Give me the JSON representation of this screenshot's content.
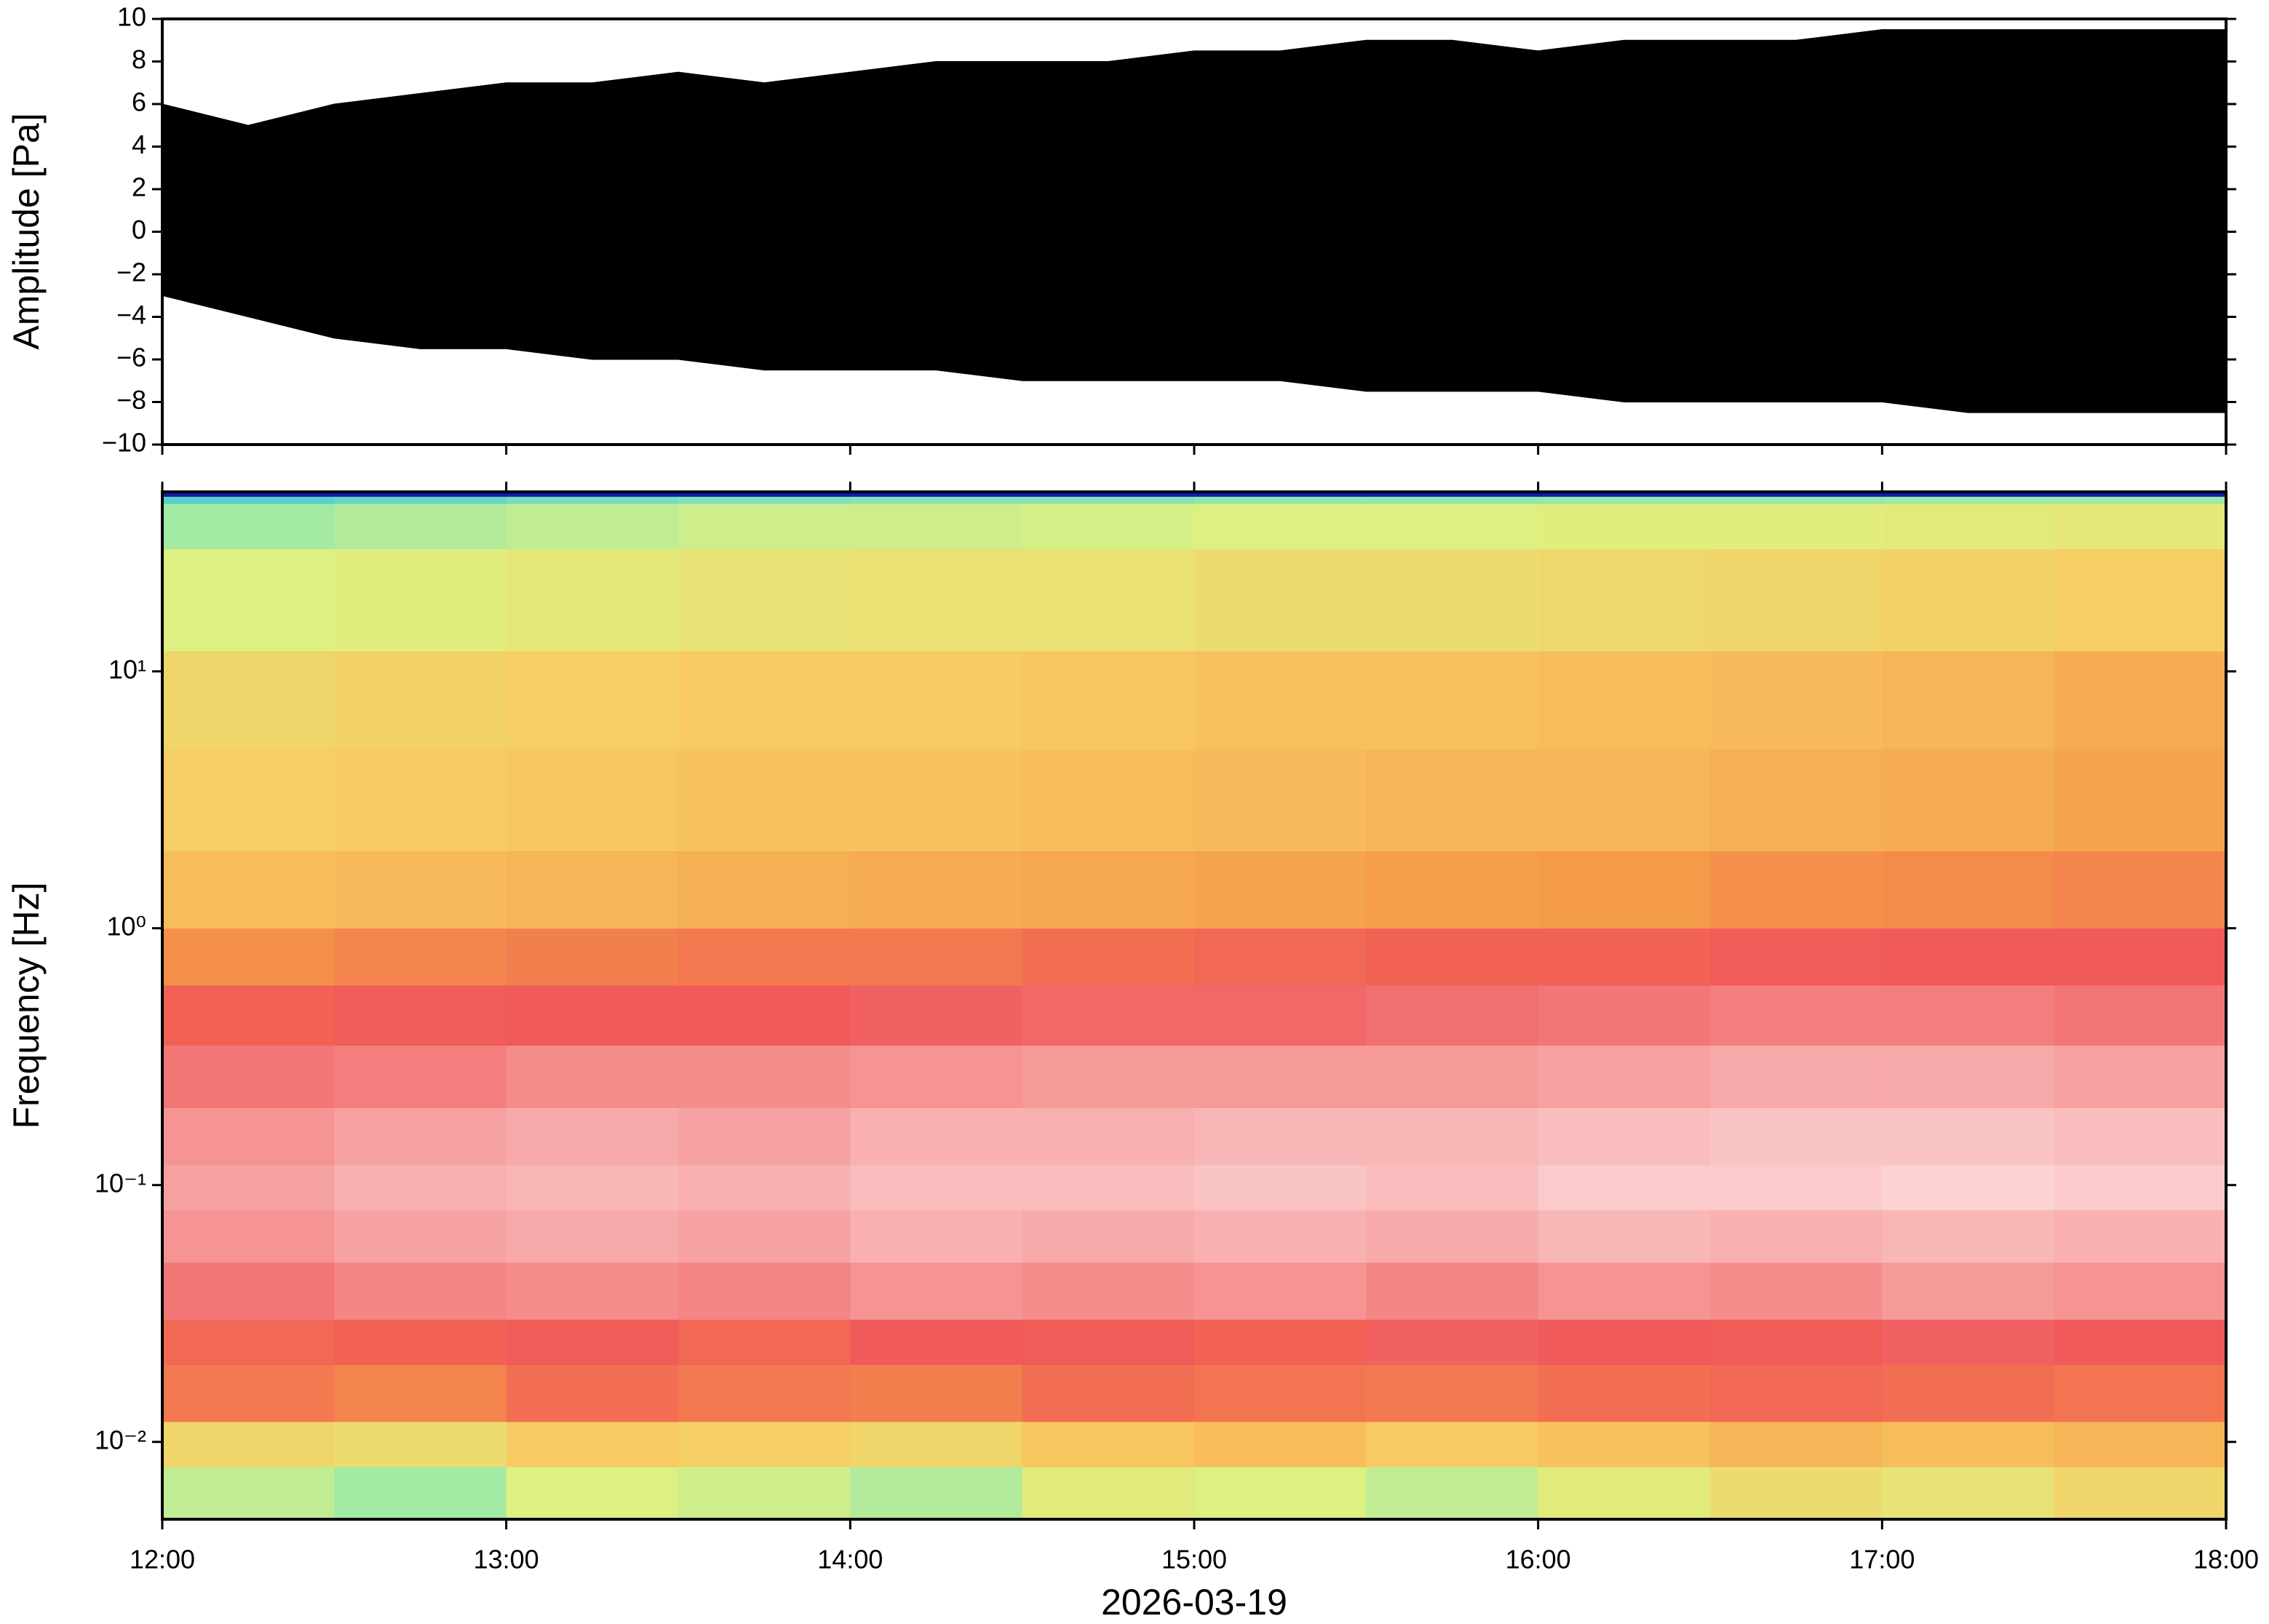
{
  "chart_data": [
    {
      "type": "area",
      "ylabel": "Amplitude [Pa]",
      "color": "#000000",
      "x": [
        12,
        12.25,
        12.5,
        12.75,
        13,
        13.25,
        13.5,
        13.75,
        14,
        14.25,
        14.5,
        14.75,
        15,
        15.25,
        15.5,
        15.75,
        16,
        16.25,
        16.5,
        16.75,
        17,
        17.25,
        17.5,
        17.75,
        18
      ],
      "upper": [
        6,
        5,
        6,
        6.5,
        7,
        7,
        7.5,
        7,
        7.5,
        8,
        8,
        8,
        8.5,
        8.5,
        9,
        9,
        8.5,
        9,
        9,
        9,
        9.5,
        9.5,
        9.5,
        9.5,
        9.5
      ],
      "lower": [
        -3,
        -4,
        -5,
        -5.5,
        -5.5,
        -6,
        -6,
        -6.5,
        -6.5,
        -6.5,
        -7,
        -7,
        -7,
        -7,
        -7.5,
        -7.5,
        -7.5,
        -8,
        -8,
        -8,
        -8,
        -8.5,
        -8.5,
        -8.5,
        -8.5
      ],
      "xlim": [
        12,
        18
      ],
      "xticks": [
        12,
        13,
        14,
        15,
        16,
        17,
        18
      ],
      "ylim": [
        -10,
        10
      ],
      "yticks": [
        {
          "value": -10,
          "label": "−10"
        },
        {
          "value": -8,
          "label": "−8"
        },
        {
          "value": -6,
          "label": "−6"
        },
        {
          "value": -4,
          "label": "−4"
        },
        {
          "value": -2,
          "label": "−2"
        },
        0,
        2,
        4,
        6,
        8,
        10
      ]
    },
    {
      "type": "heatmap",
      "ylabel": "Frequency [Hz]",
      "xlabel": "2026-03-19",
      "xlim": [
        12,
        18
      ],
      "xticks": [
        {
          "value": 12,
          "label": "12:00"
        },
        {
          "value": 13,
          "label": "13:00"
        },
        {
          "value": 14,
          "label": "14:00"
        },
        {
          "value": 15,
          "label": "15:00"
        },
        {
          "value": 16,
          "label": "16:00"
        },
        {
          "value": 17,
          "label": "17:00"
        },
        {
          "value": 18,
          "label": "18:00"
        }
      ],
      "ylim": [
        0.005,
        50
      ],
      "yscale": "log",
      "yticks": [
        {
          "value": 0.01,
          "label": "10⁻²"
        },
        {
          "value": 0.1,
          "label": "10⁻¹"
        },
        {
          "value": 1,
          "label": "10⁰"
        },
        {
          "value": 10,
          "label": "10¹"
        }
      ],
      "xbins": [
        12,
        12.5,
        13,
        13.5,
        14,
        14.5,
        15,
        15.5,
        16,
        16.5,
        17,
        17.5,
        18
      ],
      "ybins": [
        0.005,
        0.008,
        0.012,
        0.02,
        0.03,
        0.05,
        0.08,
        0.12,
        0.2,
        0.35,
        0.6,
        1,
        2,
        5,
        12,
        30,
        45,
        48,
        50
      ],
      "zlim": [
        0,
        1
      ],
      "colormap": [
        "#000080",
        "#1e50ff",
        "#40c0e0",
        "#90e8b0",
        "#e0f080",
        "#f8c860",
        "#f49848",
        "#f05858",
        "#f8a8a8",
        "#fff4f4"
      ],
      "values": [
        [
          0.4,
          0.36,
          0.44,
          0.42,
          0.38,
          0.46,
          0.44,
          0.4,
          0.46,
          0.5,
          0.48,
          0.52
        ],
        [
          0.52,
          0.5,
          0.55,
          0.54,
          0.52,
          0.56,
          0.58,
          0.55,
          0.57,
          0.6,
          0.58,
          0.6
        ],
        [
          0.72,
          0.7,
          0.74,
          0.72,
          0.71,
          0.74,
          0.73,
          0.72,
          0.74,
          0.75,
          0.74,
          0.73
        ],
        [
          0.75,
          0.76,
          0.77,
          0.75,
          0.78,
          0.77,
          0.76,
          0.79,
          0.78,
          0.77,
          0.79,
          0.78
        ],
        [
          0.82,
          0.84,
          0.85,
          0.84,
          0.86,
          0.85,
          0.86,
          0.84,
          0.86,
          0.85,
          0.87,
          0.86
        ],
        [
          0.86,
          0.88,
          0.89,
          0.88,
          0.9,
          0.89,
          0.9,
          0.89,
          0.91,
          0.9,
          0.91,
          0.9
        ],
        [
          0.88,
          0.9,
          0.91,
          0.9,
          0.92,
          0.92,
          0.93,
          0.92,
          0.94,
          0.94,
          0.95,
          0.94
        ],
        [
          0.86,
          0.88,
          0.89,
          0.88,
          0.9,
          0.9,
          0.91,
          0.91,
          0.92,
          0.93,
          0.93,
          0.92
        ],
        [
          0.82,
          0.83,
          0.85,
          0.85,
          0.86,
          0.87,
          0.87,
          0.87,
          0.88,
          0.89,
          0.89,
          0.88
        ],
        [
          0.76,
          0.77,
          0.78,
          0.78,
          0.79,
          0.8,
          0.8,
          0.81,
          0.82,
          0.83,
          0.83,
          0.82
        ],
        [
          0.68,
          0.7,
          0.71,
          0.72,
          0.72,
          0.74,
          0.75,
          0.76,
          0.76,
          0.77,
          0.78,
          0.78
        ],
        [
          0.58,
          0.59,
          0.6,
          0.61,
          0.62,
          0.63,
          0.64,
          0.65,
          0.66,
          0.68,
          0.69,
          0.7
        ],
        [
          0.54,
          0.55,
          0.56,
          0.57,
          0.57,
          0.58,
          0.59,
          0.6,
          0.6,
          0.61,
          0.62,
          0.64
        ],
        [
          0.52,
          0.53,
          0.54,
          0.55,
          0.55,
          0.56,
          0.57,
          0.57,
          0.58,
          0.59,
          0.6,
          0.62
        ],
        [
          0.44,
          0.45,
          0.47,
          0.48,
          0.49,
          0.49,
          0.5,
          0.5,
          0.51,
          0.52,
          0.53,
          0.54
        ],
        [
          0.36,
          0.38,
          0.4,
          0.42,
          0.42,
          0.43,
          0.44,
          0.44,
          0.45,
          0.45,
          0.46,
          0.47
        ],
        [
          0.26,
          0.28,
          0.3,
          0.31,
          0.32,
          0.32,
          0.33,
          0.33,
          0.34,
          0.34,
          0.35,
          0.35
        ],
        [
          0.04,
          0.04,
          0.04,
          0.04,
          0.04,
          0.04,
          0.04,
          0.04,
          0.04,
          0.04,
          0.04,
          0.04
        ]
      ]
    }
  ]
}
